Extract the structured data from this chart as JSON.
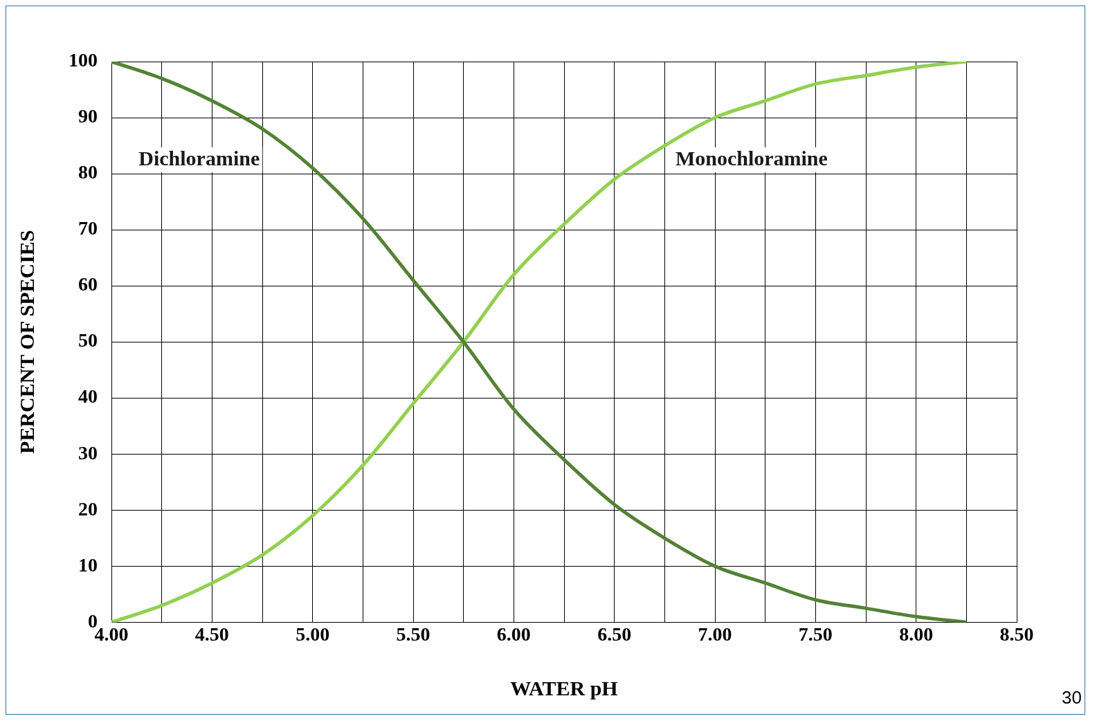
{
  "chart_data": {
    "type": "line",
    "xlabel": "WATER pH",
    "ylabel": "PERCENT OF SPECIES",
    "x": [
      4.0,
      4.25,
      4.5,
      4.75,
      5.0,
      5.25,
      5.5,
      5.75,
      6.0,
      6.25,
      6.5,
      6.75,
      7.0,
      7.25,
      7.5,
      7.75,
      8.0,
      8.25
    ],
    "series": [
      {
        "name": "Dichloramine",
        "color": "#548235",
        "values": [
          100,
          97,
          93,
          88,
          81,
          72,
          61,
          50,
          38,
          29,
          21,
          15,
          10,
          7,
          4,
          2.5,
          1,
          0
        ]
      },
      {
        "name": "Monochloramine",
        "color": "#92d050",
        "values": [
          0,
          3,
          7,
          12,
          19,
          28,
          39,
          50,
          62,
          71,
          79,
          85,
          90,
          93,
          96,
          97.5,
          99,
          100
        ]
      }
    ],
    "xlim": [
      4.0,
      8.5
    ],
    "xticks": [
      {
        "value": 4.0,
        "label": "4.00"
      },
      {
        "value": 4.25,
        "label": null
      },
      {
        "value": 4.5,
        "label": "4.50"
      },
      {
        "value": 4.75,
        "label": null
      },
      {
        "value": 5.0,
        "label": "5.00"
      },
      {
        "value": 5.25,
        "label": null
      },
      {
        "value": 5.5,
        "label": "5.50"
      },
      {
        "value": 5.75,
        "label": null
      },
      {
        "value": 6.0,
        "label": "6.00"
      },
      {
        "value": 6.25,
        "label": null
      },
      {
        "value": 6.5,
        "label": "6.50"
      },
      {
        "value": 6.75,
        "label": null
      },
      {
        "value": 7.0,
        "label": "7.00"
      },
      {
        "value": 7.25,
        "label": null
      },
      {
        "value": 7.5,
        "label": "7.50"
      },
      {
        "value": 7.75,
        "label": null
      },
      {
        "value": 8.0,
        "label": "8.00"
      },
      {
        "value": 8.25,
        "label": null
      },
      {
        "value": 8.5,
        "label": "8.50"
      }
    ],
    "ylim": [
      0,
      100
    ],
    "yticks": [
      0,
      10,
      20,
      30,
      40,
      50,
      60,
      70,
      80,
      90,
      100
    ],
    "grid": true,
    "legend": false,
    "marker": "none",
    "line_style": "solid",
    "annotations": [
      "30"
    ]
  }
}
